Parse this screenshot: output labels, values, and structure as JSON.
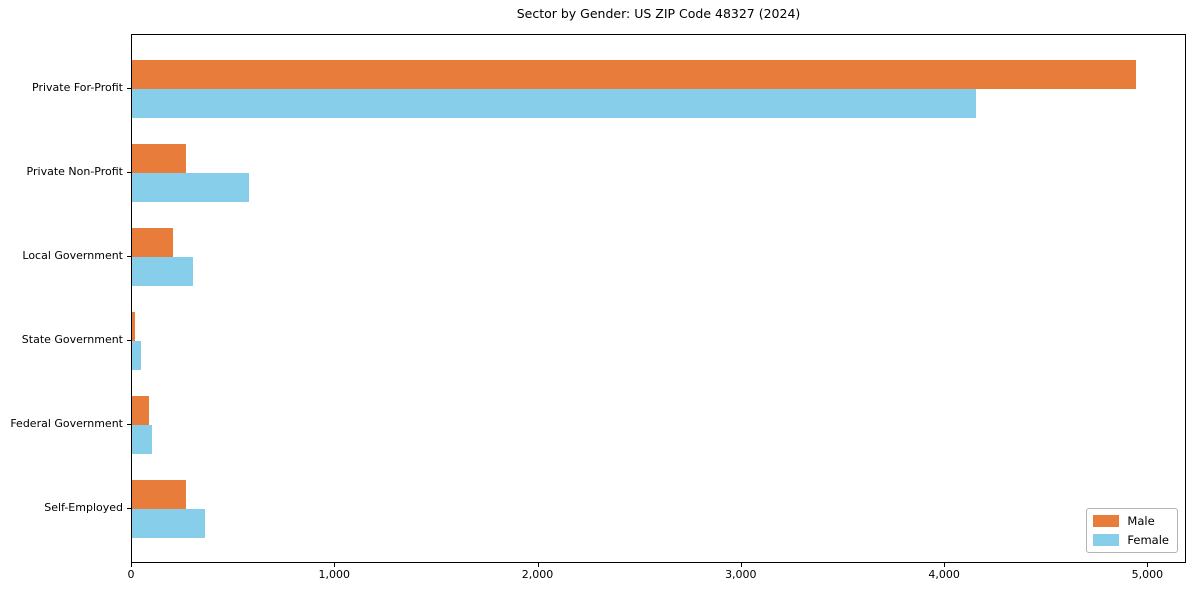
{
  "chart_data": {
    "type": "bar",
    "orientation": "horizontal",
    "title": "Sector by Gender: US ZIP Code 48327 (2024)",
    "categories": [
      "Private For-Profit",
      "Private Non-Profit",
      "Local Government",
      "State Government",
      "Federal Government",
      "Self-Employed"
    ],
    "series": [
      {
        "name": "Male",
        "color": "#E87D3B",
        "values": [
          4940,
          265,
          200,
          15,
          85,
          265
        ]
      },
      {
        "name": "Female",
        "color": "#87CEEB",
        "values": [
          4150,
          575,
          300,
          45,
          100,
          360
        ]
      }
    ],
    "xlabel": "",
    "ylabel": "",
    "xlim": [
      0,
      5190
    ],
    "x_ticks": [
      0,
      1000,
      2000,
      3000,
      4000,
      5000
    ],
    "x_tick_labels": [
      "0",
      "1,000",
      "2,000",
      "3,000",
      "4,000",
      "5,000"
    ],
    "grid": false,
    "legend_position": "lower right",
    "legend_labels": [
      "Male",
      "Female"
    ]
  }
}
